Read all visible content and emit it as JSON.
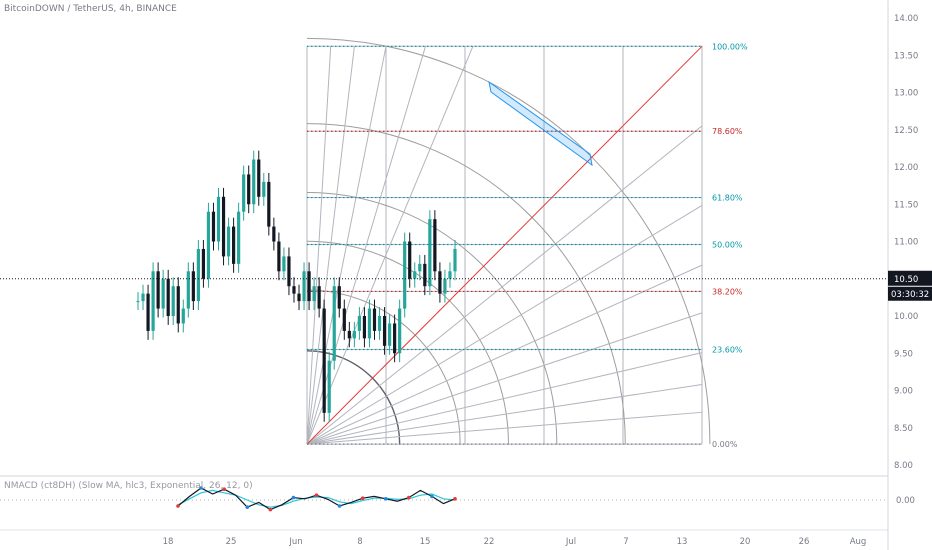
{
  "header": {
    "symbol_title": "BitcoinDOWN / TetherUS, 4h, BINANCE",
    "indicator_title": "NMACD (ct8DH) (Slow MA, hlc3, Exponential, 26, 12, 0)"
  },
  "price_axis": {
    "labels": [
      "14.00",
      "13.50",
      "13.00",
      "12.50",
      "12.00",
      "11.50",
      "11.00",
      "10.50",
      "10.00",
      "9.50",
      "9.00",
      "8.50",
      "8.00"
    ],
    "current_price": "10.50",
    "countdown": "03:30:32",
    "badge_color": "#131722"
  },
  "macd_axis": {
    "labels": [
      "0.00"
    ]
  },
  "time_axis": {
    "labels": [
      "18",
      "25",
      "Jun",
      "8",
      "15",
      "22",
      "Jul",
      "7",
      "13",
      "20",
      "26",
      "Aug"
    ]
  },
  "chart_data": {
    "type": "candlestick",
    "title": "BitcoinDOWN / TetherUS, 4h, BINANCE",
    "ylim": [
      7.7,
      14.3
    ],
    "price_ticks": [
      14.0,
      13.5,
      13.0,
      12.5,
      12.0,
      11.5,
      11.0,
      10.5,
      10.0,
      9.5,
      9.0,
      8.5,
      8.0
    ],
    "current_price": 10.5,
    "x_ticks": [
      "18",
      "25",
      "Jun",
      "8",
      "15",
      "22",
      "Jul",
      "7",
      "13",
      "20",
      "26",
      "Aug"
    ],
    "fib_levels": [
      {
        "label": "100.00%",
        "ratio": 1.0,
        "price": 13.62,
        "color": "#0097a7"
      },
      {
        "label": "78.60%",
        "ratio": 0.786,
        "price": 12.48,
        "color": "#c62828"
      },
      {
        "label": "61.80%",
        "ratio": 0.618,
        "price": 11.59,
        "color": "#0097a7"
      },
      {
        "label": "50.00%",
        "ratio": 0.5,
        "price": 10.96,
        "color": "#0097a7"
      },
      {
        "label": "38.20%",
        "ratio": 0.382,
        "price": 10.33,
        "color": "#c62828"
      },
      {
        "label": "23.60%",
        "ratio": 0.236,
        "price": 9.55,
        "color": "#0097a7"
      },
      {
        "label": "0.00%",
        "ratio": 0.0,
        "price": 8.28,
        "color": "#787b86"
      }
    ],
    "price_path": [
      10.2,
      10.3,
      9.8,
      10.6,
      10.1,
      10.5,
      10.0,
      10.4,
      9.9,
      10.1,
      10.6,
      10.2,
      10.9,
      10.5,
      11.4,
      11.0,
      11.6,
      10.8,
      11.2,
      10.7,
      11.4,
      11.9,
      11.5,
      12.1,
      11.6,
      11.8,
      11.2,
      11.0,
      10.6,
      10.8,
      10.4,
      10.3,
      10.2,
      10.6,
      10.2,
      10.4,
      10.1,
      8.7,
      9.4,
      10.4,
      10.1,
      9.8,
      9.7,
      9.8,
      10.0,
      9.7,
      10.1,
      9.8,
      10.0,
      9.6,
      9.9,
      9.5,
      10.1,
      11.0,
      10.5,
      10.6,
      10.7,
      10.4,
      11.3,
      10.6,
      10.3,
      10.5,
      10.6,
      10.9
    ],
    "ema_path": [
      -1.0,
      0.6,
      2.0,
      1.0,
      1.8,
      0.8,
      -1.2,
      -0.4,
      -1.6,
      -0.8,
      0.4,
      0.2,
      0.8,
      0.1,
      -1.0,
      -0.4,
      0.3,
      0.6,
      0.2,
      -0.2,
      0.4,
      1.6,
      0.6,
      -0.6,
      0.2
    ],
    "signal_path": [
      -0.8,
      0.2,
      1.2,
      1.6,
      1.2,
      0.8,
      0.0,
      -0.8,
      -1.2,
      -0.9,
      -0.2,
      0.3,
      0.5,
      0.4,
      -0.3,
      -0.6,
      -0.1,
      0.3,
      0.3,
      0.1,
      0.2,
      0.8,
      1.0,
      0.2,
      0.0
    ],
    "macd_zero_label": "0.00"
  },
  "colors": {
    "up_candle": "#26a69a",
    "down_candle": "#131722",
    "fib_red": "#c62828",
    "fib_teal": "#0097a7",
    "fan_line": "#9e9e9e",
    "diagonal": "#e53935",
    "channel": "#2196f3",
    "macd_line": "#131722",
    "macd_signal": "#26c6da",
    "macd_dot": "#e53935"
  }
}
